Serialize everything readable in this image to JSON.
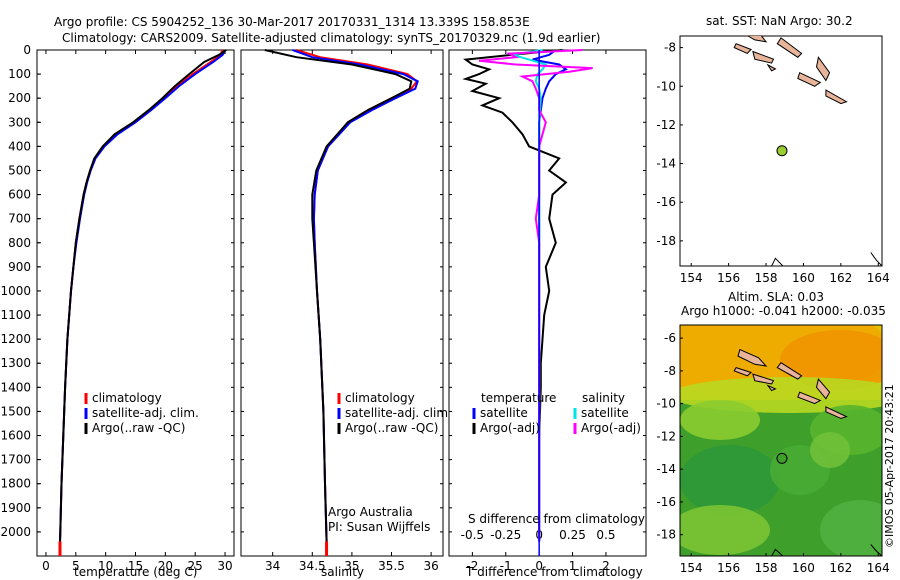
{
  "header": {
    "line1": "Argo profile: CS 5904252_136 30-Mar-2017 20170331_1314 13.339S 158.853E",
    "line2": "Climatology: CARS2009. Satellite-adjusted climatology: synTS_20170329.nc (1.9d earlier)"
  },
  "colors": {
    "climatology": "#ff0000",
    "satellite": "#0000ff",
    "argo": "#000000",
    "sal_satellite": "#00e5e5",
    "sal_argo": "#ff00ff",
    "land": "#e8b49a",
    "marker": "#9acd32"
  },
  "chart_data": [
    {
      "type": "line",
      "id": "temperature",
      "xlabel": "temperature (deg C)",
      "ylabel": "",
      "xlim": [
        -1.5,
        31.5
      ],
      "ylim": [
        2100,
        0
      ],
      "xticks": [
        "0",
        "5",
        "10",
        "15",
        "20",
        "25",
        "30"
      ],
      "yticks": [
        "0",
        "100",
        "200",
        "300",
        "400",
        "500",
        "600",
        "700",
        "800",
        "900",
        "1000",
        "1100",
        "1200",
        "1300",
        "1400",
        "1500",
        "1600",
        "1700",
        "1800",
        "1900",
        "2000"
      ],
      "legend": [
        "climatology",
        "satellite-adj. clim.",
        "Argo(..raw -QC)"
      ],
      "series": [
        {
          "name": "climatology",
          "depth": [
            0,
            20,
            50,
            100,
            150,
            200,
            250,
            300,
            350,
            400,
            450,
            500,
            550,
            600,
            700,
            800,
            900,
            1000,
            1200,
            1400,
            1600,
            1800,
            2000,
            2040
          ],
          "values": [
            29.5,
            29.3,
            27.6,
            24.6,
            22.0,
            19.8,
            17.4,
            14.8,
            11.8,
            9.6,
            8.2,
            7.4,
            6.8,
            6.3,
            5.6,
            5.0,
            4.6,
            4.2,
            3.6,
            3.2,
            2.9,
            2.6,
            2.4,
            2.35
          ]
        },
        {
          "name": "satellite",
          "depth": [
            0,
            20,
            50,
            100,
            150,
            200,
            250,
            300,
            350,
            400,
            450,
            500,
            550,
            600,
            700,
            800,
            900,
            1000,
            1200,
            1400,
            1600,
            1800,
            2000,
            2040
          ],
          "values": [
            30.0,
            29.6,
            28.0,
            25.0,
            22.3,
            20.0,
            17.6,
            15.0,
            12.0,
            9.8,
            8.3,
            7.5,
            6.9,
            6.4,
            5.7,
            5.1,
            4.6,
            4.2,
            3.6,
            3.2,
            2.9,
            2.6,
            2.4,
            2.35
          ]
        },
        {
          "name": "argo",
          "depth": [
            0,
            20,
            50,
            100,
            150,
            200,
            250,
            300,
            350,
            400,
            450,
            500,
            550,
            600,
            700,
            800,
            900,
            1000,
            1200,
            1400,
            1600,
            1800,
            2000,
            2040
          ],
          "values": [
            30.2,
            29.0,
            26.5,
            24.0,
            21.6,
            19.5,
            17.2,
            14.6,
            11.5,
            9.5,
            8.1,
            7.4,
            6.8,
            6.3,
            5.6,
            5.0,
            4.6,
            4.2,
            3.6,
            3.2,
            2.9,
            2.6,
            2.4,
            2.35
          ]
        }
      ]
    },
    {
      "type": "line",
      "id": "salinity",
      "xlabel": "salinity",
      "xlim": [
        33.6,
        36.15
      ],
      "ylim": [
        2100,
        0
      ],
      "xticks": [
        "34",
        "34.5",
        "35",
        "35.5",
        "36"
      ],
      "legend": [
        "climatology",
        "satellite-adj. clim.",
        "Argo(..raw -QC)"
      ],
      "series": [
        {
          "name": "climatology",
          "depth": [
            0,
            30,
            60,
            100,
            130,
            160,
            200,
            250,
            300,
            400,
            500,
            600,
            700,
            800,
            1000,
            1200,
            1500,
            1800,
            2040
          ],
          "values": [
            34.3,
            34.6,
            35.2,
            35.7,
            35.82,
            35.75,
            35.5,
            35.2,
            34.95,
            34.7,
            34.57,
            34.53,
            34.52,
            34.53,
            34.56,
            34.6,
            34.64,
            34.66,
            34.68
          ]
        },
        {
          "name": "satellite",
          "depth": [
            0,
            30,
            60,
            100,
            130,
            160,
            200,
            250,
            300,
            400,
            500,
            600,
            700,
            800,
            1000,
            1200,
            1500,
            1800,
            2040
          ],
          "values": [
            34.25,
            34.5,
            35.1,
            35.65,
            35.83,
            35.8,
            35.55,
            35.25,
            34.98,
            34.7,
            34.57,
            34.53,
            34.52,
            34.53,
            34.56,
            34.6,
            34.64,
            34.66,
            34.68
          ]
        },
        {
          "name": "argo",
          "depth": [
            0,
            30,
            60,
            100,
            130,
            160,
            200,
            250,
            300,
            400,
            500,
            600,
            700,
            800,
            1000,
            1200,
            1500,
            1800,
            2040
          ],
          "values": [
            33.9,
            34.3,
            35.0,
            35.55,
            35.75,
            35.73,
            35.5,
            35.2,
            34.95,
            34.68,
            34.55,
            34.5,
            34.5,
            34.52,
            34.56,
            34.6,
            34.64,
            34.66,
            34.68
          ]
        }
      ],
      "annotations": [
        "Argo Australia",
        "PI: Susan Wijffels"
      ]
    },
    {
      "type": "line",
      "id": "differences",
      "xlabel": "T difference from climatology",
      "xlabel_top": "S difference from climatology",
      "xlim": [
        -2.7,
        3.2
      ],
      "ylim": [
        2100,
        0
      ],
      "xticks": [
        "-2",
        "-1",
        "0",
        "1",
        "2"
      ],
      "sticks": [
        "-0.5",
        "-0.25",
        "0",
        "0.25",
        "0.5"
      ],
      "legend_temperature": [
        "temperature",
        "satellite",
        "Argo(-adj)"
      ],
      "legend_salinity": [
        "salinity",
        "satellite",
        "Argo(-adj)"
      ],
      "series": [
        {
          "name": "T satellite",
          "depth": [
            0,
            20,
            40,
            60,
            80,
            100,
            130,
            160,
            200,
            250,
            300,
            400,
            500,
            700,
            1000,
            1500,
            2040
          ],
          "values": [
            0.5,
            0.3,
            -0.2,
            0.6,
            0.8,
            0.5,
            0.3,
            0.2,
            0.1,
            0.05,
            0.0,
            0.0,
            0.0,
            0.0,
            0.0,
            0.0,
            0.0
          ]
        },
        {
          "name": "T argo",
          "depth": [
            0,
            20,
            40,
            60,
            80,
            100,
            120,
            140,
            170,
            200,
            230,
            260,
            300,
            350,
            400,
            450,
            500,
            550,
            600,
            700,
            800,
            900,
            1000,
            1100,
            1200,
            1300,
            1400,
            1600,
            1800,
            2040
          ],
          "values": [
            0.7,
            -0.8,
            -2.2,
            -2.0,
            -1.5,
            -1.8,
            -2.2,
            -1.6,
            -2.0,
            -1.2,
            -1.7,
            -1.1,
            -0.8,
            -0.5,
            -0.3,
            0.6,
            0.3,
            0.8,
            0.4,
            0.3,
            0.5,
            0.2,
            0.3,
            0.15,
            0.1,
            0.05,
            0.05,
            0.0,
            0.0,
            0.0
          ]
        },
        {
          "name": "S satellite",
          "depth": [
            0,
            20,
            40,
            60,
            80,
            100,
            130,
            160,
            200,
            300,
            500,
            800,
            1200,
            2040
          ],
          "values": [
            0.1,
            -0.8,
            -0.3,
            0.2,
            0.1,
            -0.05,
            -0.1,
            0.0,
            0.05,
            0.0,
            0.0,
            0.0,
            0.0,
            0.0
          ]
        },
        {
          "name": "S argo",
          "depth": [
            0,
            15,
            30,
            45,
            60,
            75,
            90,
            110,
            130,
            160,
            200,
            250,
            300,
            350,
            400,
            500,
            600,
            700,
            800,
            1000,
            1500,
            2040
          ],
          "values": [
            1.3,
            -0.9,
            -0.7,
            -1.8,
            -0.7,
            1.6,
            0.9,
            -0.5,
            -0.2,
            -0.1,
            0.0,
            0.0,
            0.2,
            0.1,
            0.0,
            0.0,
            0.0,
            -0.1,
            0.0,
            0.0,
            0.0,
            0.0
          ]
        }
      ]
    }
  ],
  "map_sst": {
    "title": "sat. SST: NaN Argo: 30.2",
    "xticks": [
      "154",
      "156",
      "158",
      "160",
      "162",
      "164"
    ],
    "yticks": [
      "-8",
      "-10",
      "-12",
      "-14",
      "-16",
      "-18"
    ],
    "lon_range": [
      153.4,
      164.2
    ],
    "lat_range": [
      -19.3,
      -7.4
    ],
    "argo_lon": 158.853,
    "argo_lat": -13.339
  },
  "map_sla": {
    "title1": "Altim. SLA: 0.03",
    "title2": "Argo h1000: -0.041 h2000: -0.035",
    "xticks": [
      "154",
      "156",
      "158",
      "160",
      "162",
      "164"
    ],
    "yticks": [
      "-6",
      "-8",
      "-10",
      "-12",
      "-14",
      "-16",
      "-18"
    ],
    "lon_range": [
      153.4,
      164.2
    ],
    "lat_range": [
      -19.3,
      -5.2
    ],
    "argo_lon": 158.853,
    "argo_lat": -13.339
  },
  "watermark": "©IMOS 05-Apr-2017 20:43:21"
}
